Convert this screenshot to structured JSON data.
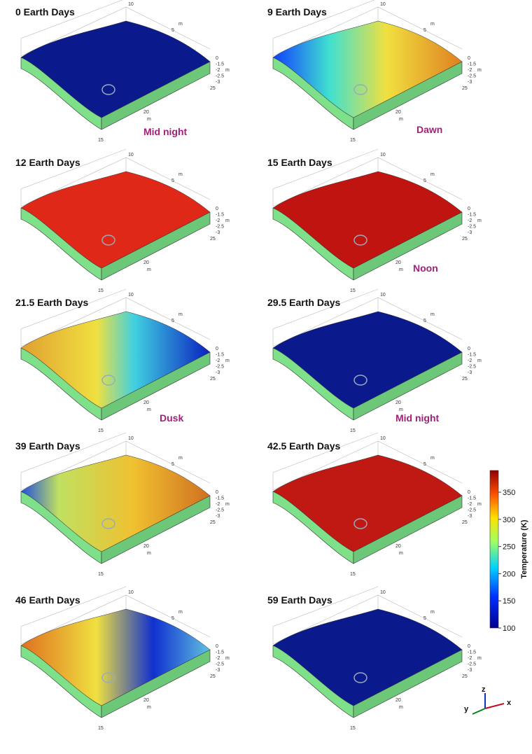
{
  "panels": [
    {
      "title": "0 Earth Days",
      "label": "Mid night"
    },
    {
      "title": "9 Earth Days",
      "label": "Dawn"
    },
    {
      "title": "12 Earth Days"
    },
    {
      "title": "15 Earth Days",
      "label": "Noon"
    },
    {
      "title": "21.5 Earth Days",
      "label": "Dusk"
    },
    {
      "title": "29.5 Earth Days",
      "label": "Mid night"
    },
    {
      "title": "39 Earth Days"
    },
    {
      "title": "42.5 Earth Days"
    },
    {
      "title": "46 Earth Days"
    },
    {
      "title": "59 Earth Days"
    }
  ],
  "axis_ticks": {
    "y_top": "10",
    "y_mid": "5",
    "y_unit": "m",
    "z": [
      "0",
      "-1.5",
      "-2",
      "-2.5",
      "-3"
    ],
    "z_unit": "m",
    "x_right": "25",
    "x_mid": "20",
    "x_unit": "m",
    "x_left": "15"
  },
  "colorbar": {
    "label": "Temperature (K)",
    "range": [
      100,
      390
    ],
    "ticks": [
      100,
      150,
      200,
      250,
      300,
      350
    ]
  },
  "triad": {
    "z": "z",
    "y": "y",
    "x": "x"
  }
}
